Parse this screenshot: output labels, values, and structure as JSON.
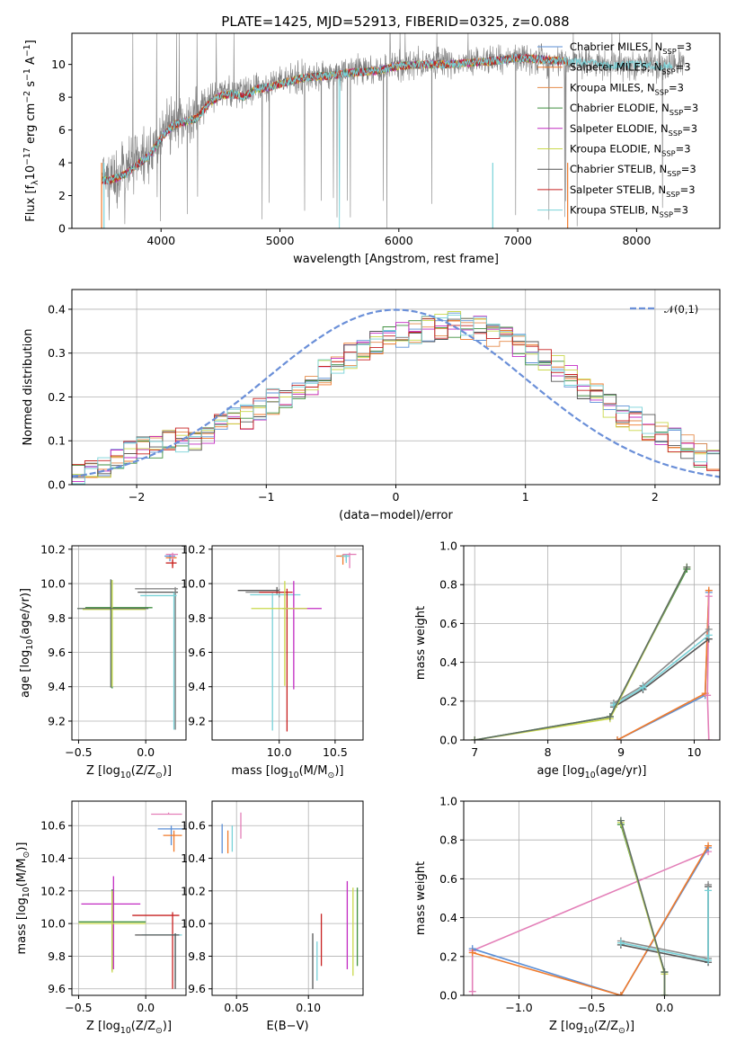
{
  "figure": {
    "title": "PLATE=1425, MJD=52913, FIBERID=0325, z=0.088",
    "model_names": [
      "Chabrier MILES, N$_{SSP}$=3",
      "Salpeter MILES, N$_{SSP}$=3",
      "Kroupa MILES, N$_{SSP}$=3",
      "Chabrier ELODIE, N$_{SSP}$=3",
      "Salpeter ELODIE, N$_{SSP}$=3",
      "Kroupa ELODIE, N$_{SSP}$=3",
      "Chabrier STELIB, N$_{SSP}$=3",
      "Salpeter STELIB, N$_{SSP}$=3",
      "Kroupa STELIB, N$_{SSP}$=3"
    ],
    "model_colors": [
      "#5b8fd6",
      "#f07a2b",
      "#e58b4a",
      "#3f8f3f",
      "#c22bc2",
      "#c9d84b",
      "#555555",
      "#c72020",
      "#78d2d8"
    ],
    "extra_colors": [
      "#e37fb8",
      "#8a8a8a",
      "#5e6e63",
      "#9ac43c"
    ]
  },
  "chart_data": [
    {
      "id": "spectrum",
      "type": "line",
      "title": "PLATE=1425, MJD=52913, FIBERID=0325, z=0.088",
      "xlabel": "wavelength [Angstrom, rest frame]",
      "ylabel": "Flux [f$_\\lambda$10$^{-17}$ erg cm$^{-2}$ s$^{-1}$ A$^{-1}$]",
      "xlim": [
        3250,
        8700
      ],
      "ylim": [
        0,
        11.9
      ],
      "xticks": [
        4000,
        5000,
        6000,
        7000,
        8000
      ],
      "yticks": [
        0,
        2,
        4,
        6,
        8,
        10
      ],
      "grid": false,
      "legend": "upper right",
      "legend_entries": [
        "Chabrier MILES, N_SSP=3",
        "Salpeter MILES, N_SSP=3",
        "Kroupa MILES, N_SSP=3",
        "Chabrier ELODIE, N_SSP=3",
        "Salpeter ELODIE, N_SSP=3",
        "Kroupa ELODIE, N_SSP=3",
        "Chabrier STELIB, N_SSP=3",
        "Salpeter STELIB, N_SSP=3",
        "Kroupa STELIB, N_SSP=3"
      ],
      "data_color": "#808080",
      "data_range": [
        3500,
        8400
      ],
      "data_continuum": {
        "x": [
          3500,
          3600,
          3700,
          3800,
          3900,
          4000,
          4100,
          4200,
          4300,
          4400,
          4500,
          4600,
          4700,
          4800,
          4900,
          5000,
          5200,
          5400,
          5600,
          5800,
          6000,
          6200,
          6400,
          6600,
          6800,
          7000,
          7200,
          7400,
          7600,
          7800,
          8000,
          8200,
          8400
        ],
        "y": [
          2.7,
          3.0,
          3.6,
          4.3,
          4.6,
          5.8,
          6.5,
          6.6,
          7.0,
          7.8,
          8.3,
          8.2,
          8.4,
          8.6,
          8.7,
          8.9,
          9.3,
          9.4,
          9.6,
          9.6,
          10.0,
          10.0,
          10.1,
          10.1,
          10.3,
          10.4,
          10.3,
          10.2,
          10.1,
          9.9,
          10.0,
          9.9,
          10.0
        ]
      },
      "model_continuum": {
        "x": [
          3500,
          3600,
          3700,
          3800,
          3900,
          4000,
          4100,
          4200,
          4300,
          4400,
          4500,
          4600,
          4700,
          4800,
          4900,
          5000,
          5200,
          5400,
          5600,
          5800,
          6000,
          6200,
          6400,
          6600,
          6800,
          7000,
          7200,
          7400
        ],
        "y": [
          2.9,
          3.0,
          3.3,
          3.9,
          4.4,
          5.5,
          6.3,
          6.5,
          6.7,
          7.6,
          8.1,
          8.2,
          8.0,
          8.5,
          8.6,
          8.8,
          9.2,
          9.3,
          9.5,
          9.6,
          9.9,
          10.0,
          10.0,
          10.1,
          10.2,
          10.4,
          10.3,
          10.2
        ]
      },
      "model_range": [
        3500,
        7420
      ],
      "kroupa_stelib_range": [
        3500,
        8300
      ]
    },
    {
      "id": "residuals",
      "type": "histogram",
      "xlabel": "(data-model)/error",
      "ylabel": "Normed distribution",
      "xlim": [
        -2.5,
        2.5
      ],
      "ylim": [
        0,
        0.445
      ],
      "xticks": [
        -2,
        -1,
        0,
        1,
        2
      ],
      "yticks": [
        0.0,
        0.1,
        0.2,
        0.3,
        0.4
      ],
      "grid": true,
      "legend": "upper right",
      "gaussian_label": "$\\mathcal{N}(0,1)$",
      "gaussian_color": "#6a8fd8",
      "bin_width": 0.1,
      "bin_start": -2.5,
      "base_values": [
        0.028,
        0.035,
        0.045,
        0.06,
        0.075,
        0.08,
        0.085,
        0.095,
        0.1,
        0.105,
        0.12,
        0.135,
        0.145,
        0.155,
        0.17,
        0.19,
        0.205,
        0.215,
        0.235,
        0.255,
        0.275,
        0.295,
        0.31,
        0.32,
        0.33,
        0.34,
        0.345,
        0.355,
        0.36,
        0.365,
        0.36,
        0.355,
        0.34,
        0.335,
        0.32,
        0.3,
        0.285,
        0.265,
        0.245,
        0.225,
        0.205,
        0.18,
        0.16,
        0.15,
        0.13,
        0.115,
        0.1,
        0.085,
        0.07,
        0.055
      ]
    },
    {
      "id": "age_vs_Z",
      "type": "errorbar",
      "xlabel": "Z [log$_{10}$(Z/Z$_\\odot$)]",
      "ylabel": "age  [log$_{10}$(age/yr)]",
      "xlim": [
        -0.55,
        0.3
      ],
      "ylim": [
        9.09,
        10.22
      ],
      "xticks": [
        -0.5,
        0.0
      ],
      "yticks": [
        9.2,
        9.4,
        9.6,
        9.8,
        10.0,
        10.2
      ],
      "grid": true,
      "points": [
        {
          "c": 0,
          "x": 0.18,
          "y": 10.16,
          "xe": [
            0.04,
            0.04
          ],
          "ye": [
            0.03,
            0.01
          ]
        },
        {
          "c": 1,
          "x": 0.2,
          "y": 10.15,
          "xe": [
            0.05,
            0.03
          ],
          "ye": [
            0.05,
            0.01
          ]
        },
        {
          "c": 9,
          "x": 0.2,
          "y": 10.17,
          "xe": [
            0.05,
            0.04
          ],
          "ye": [
            0.04,
            0.01
          ]
        },
        {
          "c": 7,
          "x": 0.2,
          "y": 10.12,
          "xe": [
            0.05,
            0.03
          ],
          "ye": [
            0.03,
            0.02
          ]
        },
        {
          "c": 6,
          "x": 0.22,
          "y": 9.95,
          "xe": [
            0.28,
            0.02
          ],
          "ye": [
            0.8,
            0.02
          ]
        },
        {
          "c": 10,
          "x": 0.22,
          "y": 9.97,
          "xe": [
            0.3,
            0.02
          ],
          "ye": [
            0.82,
            0.01
          ]
        },
        {
          "c": 8,
          "x": 0.21,
          "y": 9.93,
          "xe": [
            0.25,
            0.02
          ],
          "ye": [
            0.78,
            0.02
          ]
        },
        {
          "c": 3,
          "x": -0.25,
          "y": 9.86,
          "xe": [
            0.2,
            0.3
          ],
          "ye": [
            0.47,
            0.16
          ]
        },
        {
          "c": 5,
          "x": -0.25,
          "y": 9.85,
          "xe": [
            0.22,
            0.25
          ],
          "ye": [
            0.45,
            0.17
          ]
        },
        {
          "c": 11,
          "x": -0.26,
          "y": 9.855,
          "xe": [
            0.25,
            0.28
          ],
          "ye": [
            0.46,
            0.17
          ]
        }
      ]
    },
    {
      "id": "age_vs_mass",
      "type": "errorbar",
      "xlabel": "mass [log$_{10}$(M/M$_\\odot$)]",
      "ylabel": "",
      "xlim": [
        9.4,
        10.75
      ],
      "ylim": [
        9.09,
        10.22
      ],
      "xticks": [
        10.0,
        10.5
      ],
      "yticks": [
        9.2,
        9.4,
        9.6,
        9.8,
        10.0,
        10.2
      ],
      "grid": true,
      "points": [
        {
          "c": 0,
          "x": 10.6,
          "y": 10.16,
          "xe": [
            0.05,
            0.02
          ],
          "ye": [
            0.03,
            0.01
          ]
        },
        {
          "c": 1,
          "x": 10.57,
          "y": 10.16,
          "xe": [
            0.06,
            0.03
          ],
          "ye": [
            0.05,
            0.01
          ]
        },
        {
          "c": 9,
          "x": 10.63,
          "y": 10.17,
          "xe": [
            0.06,
            0.06
          ],
          "ye": [
            0.08,
            0.01
          ]
        },
        {
          "c": 8,
          "x": 10.6,
          "y": 10.16,
          "xe": [
            0.04,
            0.03
          ],
          "ye": [
            0.04,
            0.01
          ]
        },
        {
          "c": 6,
          "x": 9.98,
          "y": 9.96,
          "xe": [
            0.35,
            0.02
          ],
          "ye": [
            0.02,
            0.02
          ]
        },
        {
          "c": 10,
          "x": 10.0,
          "y": 9.95,
          "xe": [
            0.3,
            0.05
          ],
          "ye": [
            0.03,
            0.02
          ]
        },
        {
          "c": 8,
          "x": 9.94,
          "y": 9.935,
          "xe": [
            0.2,
            0.25
          ],
          "ye": [
            0.79,
            0.01
          ]
        },
        {
          "c": 7,
          "x": 10.07,
          "y": 9.95,
          "xe": [
            0.25,
            0.05
          ],
          "ye": [
            0.81,
            0.02
          ]
        },
        {
          "c": 4,
          "x": 10.13,
          "y": 9.855,
          "xe": [
            0.1,
            0.25
          ],
          "ye": [
            0.47,
            0.16
          ]
        },
        {
          "c": 5,
          "x": 10.05,
          "y": 9.855,
          "xe": [
            0.3,
            0.2
          ],
          "ye": [
            0.45,
            0.16
          ]
        }
      ]
    },
    {
      "id": "massweight_vs_age",
      "type": "line",
      "xlabel": "age  [log$_{10}$(age/yr)]",
      "ylabel": "mass weight",
      "xlim": [
        6.85,
        10.35
      ],
      "ylim": [
        0,
        1.0
      ],
      "xticks": [
        7,
        8,
        9,
        10
      ],
      "yticks": [
        0.0,
        0.2,
        0.4,
        0.6,
        0.8,
        1.0
      ],
      "grid": true,
      "series": [
        {
          "c": 0,
          "x": [
            8.95,
            10.15,
            10.2
          ],
          "y": [
            0.0,
            0.23,
            0.76
          ]
        },
        {
          "c": 1,
          "x": [
            8.95,
            10.15,
            10.2
          ],
          "y": [
            0.0,
            0.24,
            0.77
          ]
        },
        {
          "c": 9,
          "x": [
            10.2,
            10.18,
            10.2
          ],
          "y": [
            0.0,
            0.23,
            0.74
          ]
        },
        {
          "c": 6,
          "x": [
            8.9,
            9.3,
            10.2
          ],
          "y": [
            0.17,
            0.26,
            0.52
          ]
        },
        {
          "c": 10,
          "x": [
            8.9,
            9.3,
            10.2
          ],
          "y": [
            0.19,
            0.28,
            0.57
          ]
        },
        {
          "c": 8,
          "x": [
            8.9,
            9.3,
            10.2
          ],
          "y": [
            0.18,
            0.27,
            0.54
          ]
        },
        {
          "c": 3,
          "x": [
            7.0,
            8.85,
            9.9
          ],
          "y": [
            0.0,
            0.12,
            0.88
          ]
        },
        {
          "c": 5,
          "x": [
            7.0,
            8.85,
            9.9
          ],
          "y": [
            0.0,
            0.11,
            0.89
          ]
        },
        {
          "c": 11,
          "x": [
            7.0,
            8.85,
            9.9
          ],
          "y": [
            0.0,
            0.12,
            0.89
          ]
        }
      ]
    },
    {
      "id": "mass_vs_Z",
      "type": "errorbar",
      "xlabel": "Z [log$_{10}$(Z/Z$_\\odot$)]",
      "ylabel": "mass [log$_{10}$(M/M$_\\odot$)]",
      "xlim": [
        -0.55,
        0.3
      ],
      "ylim": [
        9.56,
        10.75
      ],
      "xticks": [
        -0.5,
        0.0
      ],
      "yticks": [
        9.6,
        9.8,
        10.0,
        10.2,
        10.4,
        10.6
      ],
      "grid": true,
      "points": [
        {
          "c": 9,
          "x": 0.17,
          "y": 10.67,
          "xe": [
            0.13,
            0.1
          ],
          "ye": [
            0.0,
            0.01
          ]
        },
        {
          "c": 0,
          "x": 0.19,
          "y": 10.58,
          "xe": [
            0.1,
            0.1
          ],
          "ye": [
            0.1,
            0.02
          ]
        },
        {
          "c": 1,
          "x": 0.21,
          "y": 10.54,
          "xe": [
            0.08,
            0.06
          ],
          "ye": [
            0.1,
            0.03
          ]
        },
        {
          "c": 7,
          "x": 0.2,
          "y": 10.05,
          "xe": [
            0.3,
            0.05
          ],
          "ye": [
            0.45,
            0.02
          ]
        },
        {
          "c": 8,
          "x": 0.22,
          "y": 9.93,
          "xe": [
            0.25,
            0.05
          ],
          "ye": [
            0.28,
            0.01
          ]
        },
        {
          "c": 6,
          "x": 0.22,
          "y": 9.93,
          "xe": [
            0.3,
            0.03
          ],
          "ye": [
            0.33,
            0.01
          ]
        },
        {
          "c": 4,
          "x": -0.24,
          "y": 10.12,
          "xe": [
            0.24,
            0.2
          ],
          "ye": [
            0.4,
            0.17
          ]
        },
        {
          "c": 3,
          "x": -0.25,
          "y": 10.01,
          "xe": [
            0.25,
            0.25
          ],
          "ye": [
            0.3,
            0.2
          ]
        },
        {
          "c": 5,
          "x": -0.25,
          "y": 10.0,
          "xe": [
            0.25,
            0.25
          ],
          "ye": [
            0.3,
            0.2
          ]
        }
      ]
    },
    {
      "id": "mass_vs_EBV",
      "type": "errorbar",
      "xlabel": "E(B-V)",
      "ylabel": "",
      "xlim": [
        0.033,
        0.138
      ],
      "ylim": [
        9.56,
        10.75
      ],
      "xticks": [
        0.05,
        0.1
      ],
      "yticks": [
        9.6,
        9.8,
        10.0,
        10.2,
        10.4,
        10.6
      ],
      "grid": true,
      "points": [
        {
          "c": 0,
          "x": 0.04,
          "y": 10.52,
          "xe": [
            0,
            0
          ],
          "ye": [
            0.09,
            0.09
          ]
        },
        {
          "c": 1,
          "x": 0.044,
          "y": 10.5,
          "xe": [
            0,
            0
          ],
          "ye": [
            0.07,
            0.07
          ]
        },
        {
          "c": 8,
          "x": 0.047,
          "y": 10.52,
          "xe": [
            0,
            0
          ],
          "ye": [
            0.08,
            0.08
          ]
        },
        {
          "c": 9,
          "x": 0.053,
          "y": 10.6,
          "xe": [
            0,
            0
          ],
          "ye": [
            0.08,
            0.08
          ]
        },
        {
          "c": 6,
          "x": 0.103,
          "y": 9.77,
          "xe": [
            0,
            0
          ],
          "ye": [
            0.17,
            0.17
          ]
        },
        {
          "c": 8,
          "x": 0.106,
          "y": 9.77,
          "xe": [
            0,
            0
          ],
          "ye": [
            0.12,
            0.12
          ]
        },
        {
          "c": 7,
          "x": 0.109,
          "y": 9.9,
          "xe": [
            0,
            0
          ],
          "ye": [
            0.16,
            0.16
          ]
        },
        {
          "c": 4,
          "x": 0.127,
          "y": 9.99,
          "xe": [
            0,
            0
          ],
          "ye": [
            0.27,
            0.27
          ]
        },
        {
          "c": 5,
          "x": 0.131,
          "y": 9.95,
          "xe": [
            0,
            0
          ],
          "ye": [
            0.27,
            0.27
          ]
        },
        {
          "c": 3,
          "x": 0.134,
          "y": 9.98,
          "xe": [
            0,
            0
          ],
          "ye": [
            0.24,
            0.24
          ]
        }
      ]
    },
    {
      "id": "massweight_vs_Z",
      "type": "line",
      "xlabel": "Z [log$_{10}$(Z/Z$_\\odot$)]",
      "ylabel": "mass weight",
      "xlim": [
        -1.38,
        0.38
      ],
      "ylim": [
        0,
        1.0
      ],
      "xticks": [
        -1.0,
        -0.5,
        0.0
      ],
      "yticks": [
        0.0,
        0.2,
        0.4,
        0.6,
        0.8,
        1.0
      ],
      "grid": true,
      "series": [
        {
          "c": 9,
          "x": [
            -1.32,
            -1.32,
            0.3
          ],
          "y": [
            0.02,
            0.23,
            0.74
          ]
        },
        {
          "c": 0,
          "x": [
            -1.32,
            -0.3,
            0.3
          ],
          "y": [
            0.24,
            0.0,
            0.76
          ]
        },
        {
          "c": 1,
          "x": [
            -1.32,
            -0.3,
            0.3
          ],
          "y": [
            0.22,
            0.0,
            0.77
          ]
        },
        {
          "c": 6,
          "x": [
            -0.3,
            0.3,
            0.3
          ],
          "y": [
            0.26,
            0.17,
            0.56
          ]
        },
        {
          "c": 10,
          "x": [
            -0.3,
            0.3,
            0.3
          ],
          "y": [
            0.28,
            0.19,
            0.57
          ]
        },
        {
          "c": 8,
          "x": [
            -0.3,
            0.3,
            0.3
          ],
          "y": [
            0.27,
            0.18,
            0.54
          ]
        },
        {
          "c": 3,
          "x": [
            -0.3,
            0.0,
            0.0
          ],
          "y": [
            0.88,
            0.12,
            0.0
          ]
        },
        {
          "c": 5,
          "x": [
            -0.3,
            0.0,
            0.0
          ],
          "y": [
            0.89,
            0.11,
            0.0
          ]
        },
        {
          "c": 11,
          "x": [
            -0.3,
            0.0,
            0.0
          ],
          "y": [
            0.9,
            0.12,
            0.0
          ]
        }
      ]
    }
  ]
}
